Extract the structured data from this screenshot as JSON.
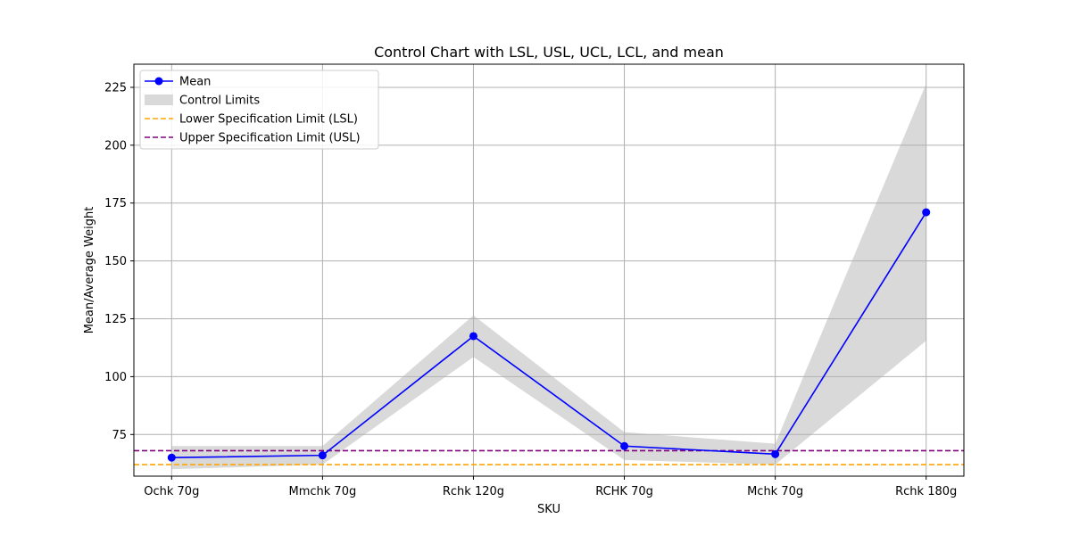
{
  "chart_data": {
    "type": "line",
    "title": "Control Chart with LSL, USL, UCL, LCL, and mean",
    "xlabel": "SKU",
    "ylabel": "Mean/Average Weight",
    "categories": [
      "Ochk 70g",
      "Mmchk 70g",
      "Rchk 120g",
      "RCHK 70g",
      "Mchk 70g",
      "Rchk 180g"
    ],
    "ylim": [
      57,
      235
    ],
    "yticks": [
      75,
      100,
      125,
      150,
      175,
      200,
      225
    ],
    "grid": true,
    "legend_position": "top-left",
    "series": [
      {
        "name": "Mean",
        "kind": "line-marker",
        "color": "#0000ff",
        "values": [
          65,
          66,
          117.5,
          70,
          66.5,
          171
        ]
      },
      {
        "name": "Control Limits",
        "kind": "band",
        "color": "#d9d9d9",
        "upper": [
          70,
          70,
          126.5,
          76,
          71,
          226.5
        ],
        "lower": [
          60,
          62,
          108.5,
          64,
          62,
          115.5
        ]
      },
      {
        "name": "Lower Specification Limit (LSL)",
        "kind": "hline",
        "color": "#ffa500",
        "value": 62
      },
      {
        "name": "Upper Specification Limit (USL)",
        "kind": "hline",
        "color": "#800080",
        "value": 68
      }
    ]
  }
}
